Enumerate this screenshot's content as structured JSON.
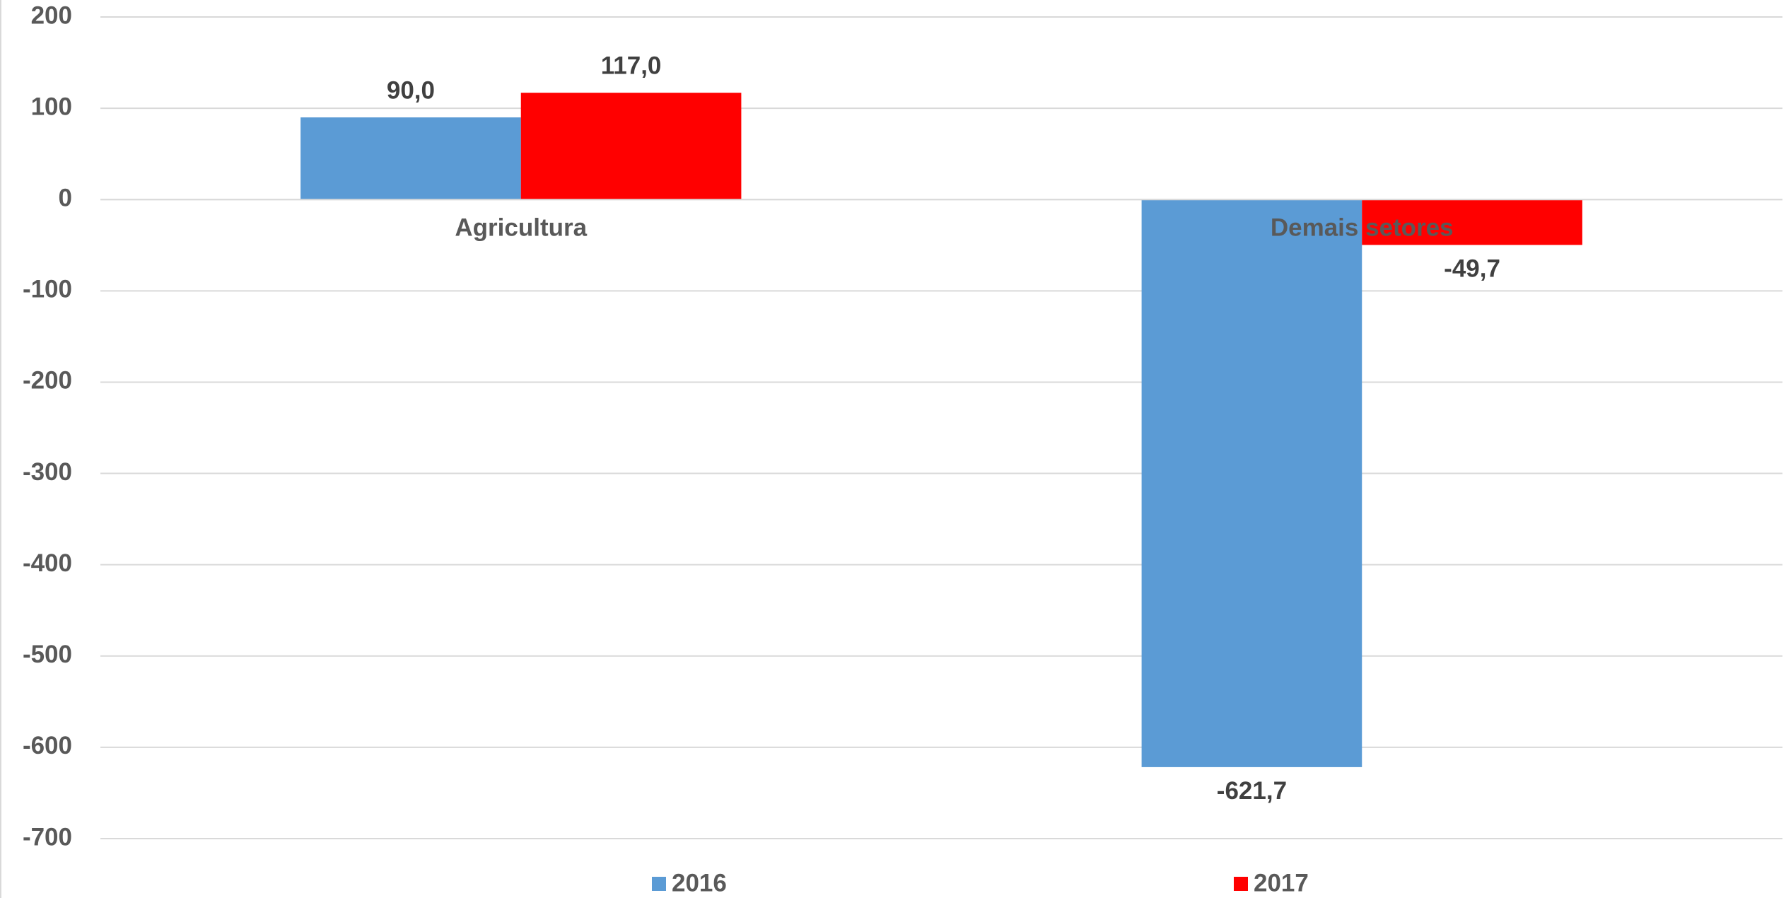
{
  "chart_data": {
    "type": "bar",
    "categories": [
      "Agricultura",
      "Demais setores"
    ],
    "series": [
      {
        "name": "2016",
        "color": "#5b9bd5",
        "values": [
          90.0,
          -621.7
        ],
        "value_labels": [
          "90,0",
          "-621,7"
        ]
      },
      {
        "name": "2017",
        "color": "#ff0000",
        "values": [
          117.0,
          -49.7
        ],
        "value_labels": [
          "117,0",
          "-49,7"
        ]
      }
    ],
    "ylim": [
      -700,
      200
    ],
    "yticks": [
      -700,
      -600,
      -500,
      -400,
      -300,
      -200,
      -100,
      0,
      100,
      200
    ],
    "grid": true,
    "legend": "bottom"
  }
}
